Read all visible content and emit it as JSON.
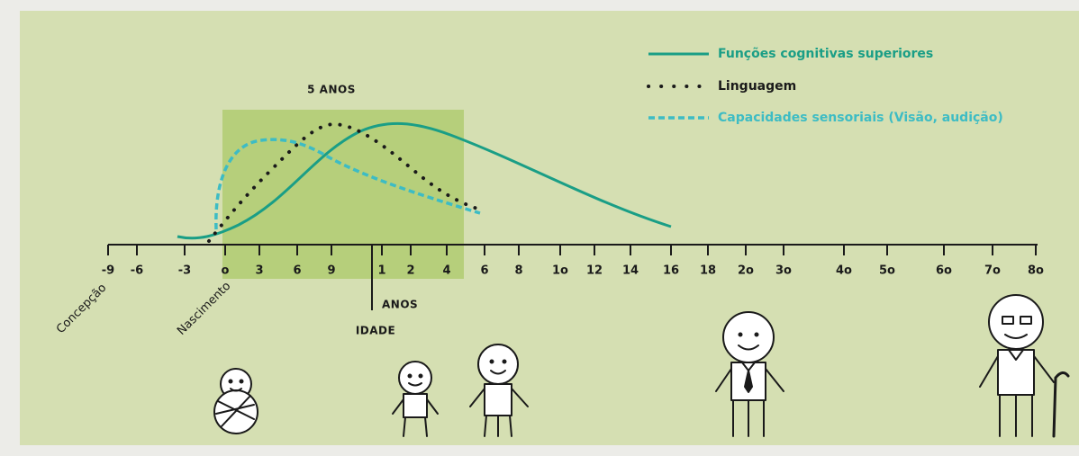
{
  "header": {
    "five_years": "5 ANOS"
  },
  "legend": [
    {
      "label": "Funções cognitivas superiores",
      "color": "#1a9e86"
    },
    {
      "label": "Linguagem",
      "color": "#1a1a1a"
    },
    {
      "label": "Capacidades sensoriais (Visão, audição)",
      "color": "#3dbcc4"
    }
  ],
  "axis": {
    "ticks": [
      "-9",
      "-6",
      "-3",
      "o",
      "3",
      "6",
      "9",
      "1",
      "2",
      "4",
      "6",
      "8",
      "1o",
      "12",
      "14",
      "16",
      "18",
      "2o",
      "3o",
      "4o",
      "5o",
      "6o",
      "7o",
      "8o"
    ],
    "unit_label": "ANOS",
    "title": "IDADE"
  },
  "annotations": {
    "conception": "Concepção",
    "birth": "Nascimento"
  }
}
